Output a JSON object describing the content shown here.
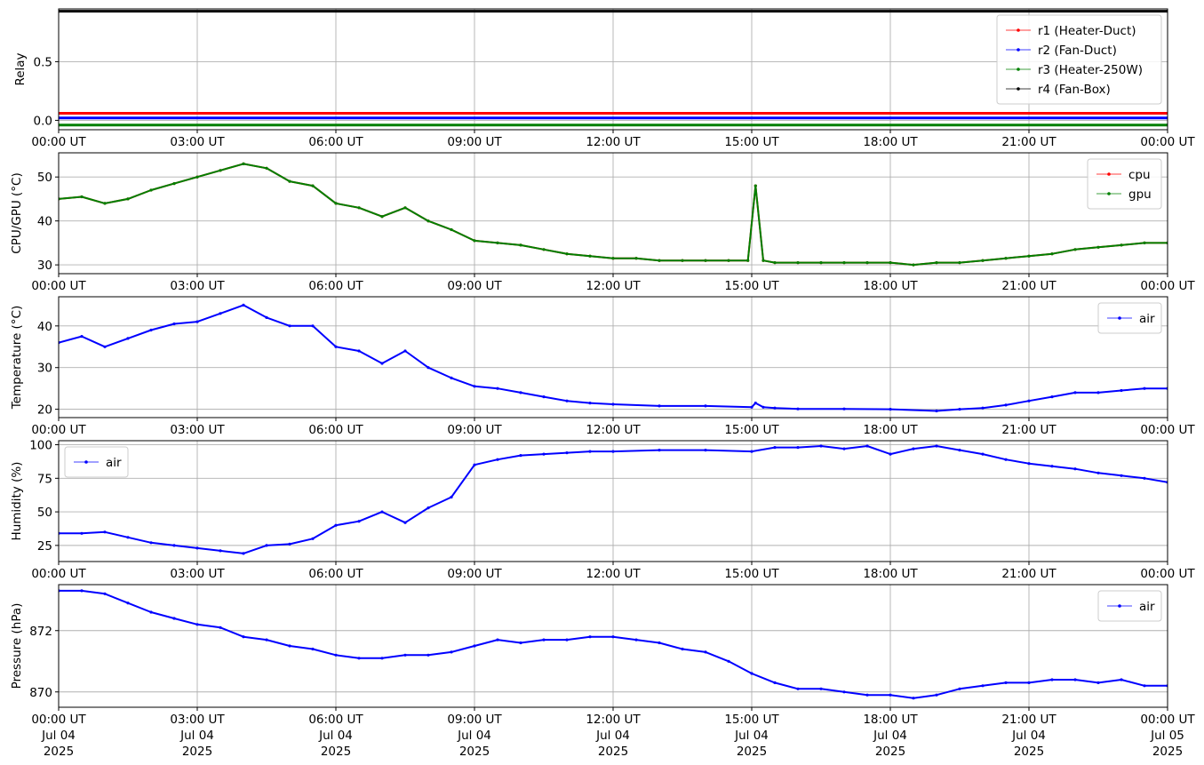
{
  "colors": {
    "red": "#ff0000",
    "blue": "#0000ff",
    "green": "#008000",
    "black": "#000000",
    "grid": "#b0b0b0"
  },
  "x_axis": {
    "start": "2025-07-04T00:00Z",
    "end": "2025-07-05T00:00Z",
    "tick_labels": [
      "00:00 UT",
      "03:00 UT",
      "06:00 UT",
      "09:00 UT",
      "12:00 UT",
      "15:00 UT",
      "18:00 UT",
      "21:00 UT",
      "00:00 UT"
    ],
    "date_labels": [
      "Jul 04",
      "Jul 04",
      "Jul 04",
      "Jul 04",
      "Jul 04",
      "Jul 04",
      "Jul 04",
      "Jul 04",
      "Jul 05"
    ],
    "year_labels": [
      "2025",
      "2025",
      "2025",
      "2025",
      "2025",
      "2025",
      "2025",
      "2025",
      "2025"
    ]
  },
  "chart_data": [
    {
      "type": "line",
      "ylabel": "Relay",
      "ylim": [
        -0.08,
        0.95
      ],
      "yticks": [
        0.0,
        0.5
      ],
      "ytick_labels": [
        "0.0",
        "0.5"
      ],
      "grid": true,
      "legend": "top-right",
      "x": [
        "2025-07-04T00:00Z",
        "2025-07-05T00:00Z"
      ],
      "series": [
        {
          "name": "r1 (Heater-Duct)",
          "color": "#ff0000",
          "values": [
            0.06,
            0.06
          ]
        },
        {
          "name": "r2 (Fan-Duct)",
          "color": "#0000ff",
          "values": [
            0.02,
            0.02
          ]
        },
        {
          "name": "r3 (Heater-250W)",
          "color": "#008000",
          "values": [
            -0.04,
            -0.04
          ]
        },
        {
          "name": "r4 (Fan-Box)",
          "color": "#000000",
          "values": [
            0.93,
            0.93
          ]
        }
      ]
    },
    {
      "type": "line",
      "ylabel": "CPU/GPU (°C)",
      "ylim": [
        28,
        55.5
      ],
      "yticks": [
        30,
        40,
        50
      ],
      "ytick_labels": [
        "30",
        "40",
        "50"
      ],
      "grid": true,
      "legend": "top-right",
      "x": [
        "00:00",
        "00:30",
        "01:00",
        "01:30",
        "02:00",
        "02:30",
        "03:00",
        "03:30",
        "04:00",
        "04:30",
        "05:00",
        "05:30",
        "06:00",
        "06:30",
        "07:00",
        "07:30",
        "08:00",
        "08:30",
        "09:00",
        "09:30",
        "10:00",
        "10:30",
        "11:00",
        "11:30",
        "12:00",
        "12:30",
        "13:00",
        "13:30",
        "14:00",
        "14:30",
        "14:55",
        "15:05",
        "15:15",
        "15:30",
        "16:00",
        "16:30",
        "17:00",
        "17:30",
        "18:00",
        "18:30",
        "19:00",
        "19:30",
        "20:00",
        "20:30",
        "21:00",
        "21:30",
        "22:00",
        "22:30",
        "23:00",
        "23:30",
        "24:00"
      ],
      "series": [
        {
          "name": "cpu",
          "color": "#ff0000",
          "values": [
            45,
            45.5,
            44,
            45,
            47,
            48.5,
            50,
            51.5,
            53,
            52,
            49,
            48,
            44,
            43,
            41,
            43,
            40,
            38,
            35.5,
            35,
            34.5,
            33.5,
            32.5,
            32,
            31.5,
            31.5,
            31,
            31,
            31,
            31,
            31,
            48,
            31,
            30.5,
            30.5,
            30.5,
            30.5,
            30.5,
            30.5,
            30,
            30.5,
            30.5,
            31,
            31.5,
            32,
            32.5,
            33.5,
            34,
            34.5,
            35,
            35
          ]
        },
        {
          "name": "gpu",
          "color": "#008000",
          "values": [
            45,
            45.5,
            44,
            45,
            47,
            48.5,
            50,
            51.5,
            53,
            52,
            49,
            48,
            44,
            43,
            41,
            43,
            40,
            38,
            35.5,
            35,
            34.5,
            33.5,
            32.5,
            32,
            31.5,
            31.5,
            31,
            31,
            31,
            31,
            31,
            48,
            31,
            30.5,
            30.5,
            30.5,
            30.5,
            30.5,
            30.5,
            30,
            30.5,
            30.5,
            31,
            31.5,
            32,
            32.5,
            33.5,
            34,
            34.5,
            35,
            35
          ]
        }
      ]
    },
    {
      "type": "line",
      "ylabel": "Temperature (°C)",
      "ylim": [
        18,
        47
      ],
      "yticks": [
        20,
        30,
        40
      ],
      "ytick_labels": [
        "20",
        "30",
        "40"
      ],
      "grid": true,
      "legend": "top-right",
      "x": [
        "00:00",
        "00:30",
        "01:00",
        "01:30",
        "02:00",
        "02:30",
        "03:00",
        "03:30",
        "04:00",
        "04:30",
        "05:00",
        "05:30",
        "06:00",
        "06:30",
        "07:00",
        "07:30",
        "08:00",
        "08:30",
        "09:00",
        "09:30",
        "10:00",
        "10:30",
        "11:00",
        "11:30",
        "12:00",
        "13:00",
        "14:00",
        "15:00",
        "15:05",
        "15:15",
        "15:30",
        "16:00",
        "17:00",
        "18:00",
        "19:00",
        "19:30",
        "20:00",
        "20:30",
        "21:00",
        "21:30",
        "22:00",
        "22:30",
        "23:00",
        "23:30",
        "24:00"
      ],
      "series": [
        {
          "name": "air",
          "color": "#0000ff",
          "values": [
            36,
            37.5,
            35,
            37,
            39,
            40.5,
            41,
            43,
            45,
            42,
            40,
            40,
            35,
            34,
            31,
            34,
            30,
            27.5,
            25.5,
            25,
            24,
            23,
            22,
            21.5,
            21.2,
            20.8,
            20.8,
            20.5,
            21.5,
            20.5,
            20.3,
            20.1,
            20.1,
            20,
            19.6,
            20,
            20.3,
            21,
            22,
            23,
            24,
            24,
            24.5,
            25,
            25
          ]
        }
      ]
    },
    {
      "type": "line",
      "ylabel": "Humidity (%)",
      "ylim": [
        13,
        103
      ],
      "yticks": [
        25,
        50,
        75,
        100
      ],
      "ytick_labels": [
        "25",
        "50",
        "75",
        "100"
      ],
      "grid": true,
      "legend": "top-left",
      "x": [
        "00:00",
        "00:30",
        "01:00",
        "01:30",
        "02:00",
        "02:30",
        "03:00",
        "03:30",
        "04:00",
        "04:30",
        "05:00",
        "05:30",
        "06:00",
        "06:30",
        "07:00",
        "07:30",
        "08:00",
        "08:30",
        "09:00",
        "09:30",
        "10:00",
        "10:30",
        "11:00",
        "11:30",
        "12:00",
        "13:00",
        "14:00",
        "15:00",
        "15:30",
        "16:00",
        "16:30",
        "17:00",
        "17:30",
        "18:00",
        "18:30",
        "19:00",
        "19:30",
        "20:00",
        "20:30",
        "21:00",
        "21:30",
        "22:00",
        "22:30",
        "23:00",
        "23:30",
        "24:00"
      ],
      "series": [
        {
          "name": "air",
          "color": "#0000ff",
          "values": [
            34,
            34,
            35,
            31,
            27,
            25,
            23,
            21,
            19,
            25,
            26,
            30,
            40,
            43,
            50,
            42,
            53,
            61,
            85,
            89,
            92,
            93,
            94,
            95,
            95,
            96,
            96,
            95,
            98,
            98,
            99,
            97,
            99,
            93,
            97,
            99,
            96,
            93,
            89,
            86,
            84,
            82,
            79,
            77,
            75,
            72
          ]
        }
      ]
    },
    {
      "type": "line",
      "ylabel": "Pressure (hPa)",
      "ylim": [
        869.5,
        873.5
      ],
      "yticks": [
        870,
        872
      ],
      "ytick_labels": [
        "870",
        "872"
      ],
      "grid": true,
      "legend": "top-right",
      "x": [
        "00:00",
        "00:30",
        "01:00",
        "01:30",
        "02:00",
        "02:30",
        "03:00",
        "03:30",
        "04:00",
        "04:30",
        "05:00",
        "05:30",
        "06:00",
        "06:30",
        "07:00",
        "07:30",
        "08:00",
        "08:30",
        "09:00",
        "09:30",
        "10:00",
        "10:30",
        "11:00",
        "11:30",
        "12:00",
        "12:30",
        "13:00",
        "13:30",
        "14:00",
        "14:30",
        "15:00",
        "15:30",
        "16:00",
        "16:30",
        "17:00",
        "17:30",
        "18:00",
        "18:30",
        "19:00",
        "19:30",
        "20:00",
        "20:30",
        "21:00",
        "21:30",
        "22:00",
        "22:30",
        "23:00",
        "23:30",
        "24:00"
      ],
      "series": [
        {
          "name": "air",
          "color": "#0000ff",
          "values": [
            873.3,
            873.3,
            873.2,
            872.9,
            872.6,
            872.4,
            872.2,
            872.1,
            871.8,
            871.7,
            871.5,
            871.4,
            871.2,
            871.1,
            871.1,
            871.2,
            871.2,
            871.3,
            871.5,
            871.7,
            871.6,
            871.7,
            871.7,
            871.8,
            871.8,
            871.7,
            871.6,
            871.4,
            871.3,
            871.0,
            870.6,
            870.3,
            870.1,
            870.1,
            870.0,
            869.9,
            869.9,
            869.8,
            869.9,
            870.1,
            870.2,
            870.3,
            870.3,
            870.4,
            870.4,
            870.3,
            870.4,
            870.2,
            870.2
          ]
        }
      ]
    }
  ]
}
